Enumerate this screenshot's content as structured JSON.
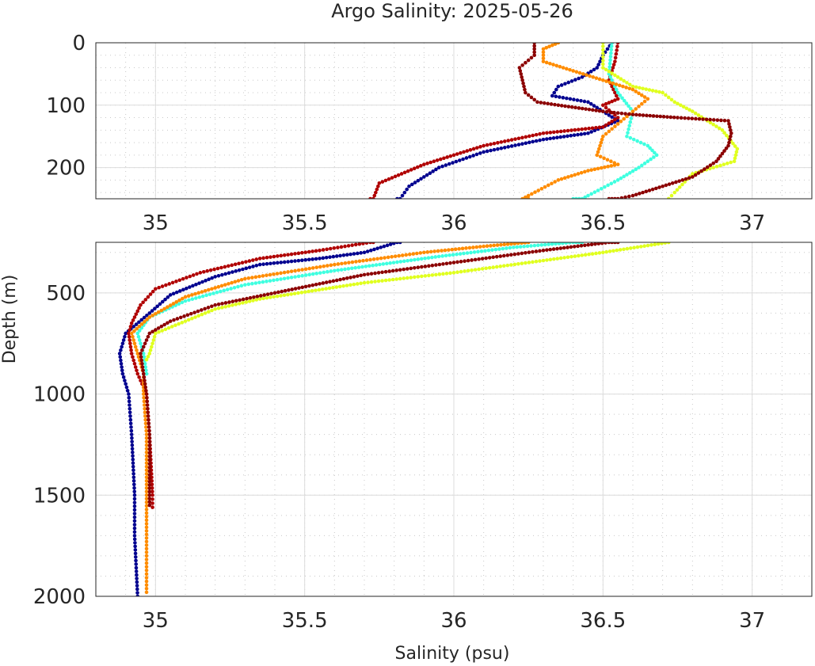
{
  "chart_data": {
    "type": "scatter",
    "title": "Argo Salinity: 2025-05-26",
    "xlabel": "Salinity (psu)",
    "ylabel": "Depth (m)",
    "xlim": [
      34.8,
      37.2
    ],
    "xticks": [
      "35",
      "35.5",
      "36",
      "36.5",
      "37"
    ],
    "grid": true,
    "minor_grid": true,
    "y_reversed": true,
    "panels": [
      {
        "name": "upper",
        "ylim": [
          0,
          250
        ],
        "yticks": [
          "0",
          "100",
          "200"
        ],
        "xlabel": "",
        "ylabel": ""
      },
      {
        "name": "lower",
        "ylim": [
          250,
          2000
        ],
        "yticks": [
          "500",
          "1000",
          "1500",
          "2000"
        ],
        "xlabel": "Salinity (psu)",
        "ylabel": "Depth (m)"
      }
    ],
    "series": [
      {
        "color": "#00008f",
        "points": [
          [
            36.53,
            0
          ],
          [
            36.5,
            20
          ],
          [
            36.48,
            40
          ],
          [
            36.43,
            55
          ],
          [
            36.35,
            70
          ],
          [
            36.33,
            85
          ],
          [
            36.45,
            95
          ],
          [
            36.5,
            110
          ],
          [
            36.55,
            125
          ],
          [
            36.45,
            145
          ],
          [
            36.3,
            155
          ],
          [
            36.1,
            175
          ],
          [
            35.95,
            200
          ],
          [
            35.85,
            230
          ],
          [
            35.82,
            250
          ],
          [
            35.81,
            250
          ],
          [
            35.7,
            300
          ],
          [
            35.55,
            330
          ],
          [
            35.35,
            360
          ],
          [
            35.2,
            420
          ],
          [
            35.05,
            510
          ],
          [
            34.98,
            600
          ],
          [
            34.9,
            700
          ],
          [
            34.88,
            800
          ],
          [
            34.89,
            900
          ],
          [
            34.91,
            1000
          ],
          [
            34.92,
            1200
          ],
          [
            34.93,
            1500
          ],
          [
            34.93,
            1700
          ],
          [
            34.94,
            2000
          ]
        ]
      },
      {
        "color": "#0f5fff",
        "points": []
      },
      {
        "color": "#b00000",
        "points": [
          [
            36.55,
            0
          ],
          [
            36.54,
            30
          ],
          [
            36.52,
            60
          ],
          [
            36.55,
            90
          ],
          [
            36.5,
            100
          ],
          [
            36.55,
            120
          ],
          [
            36.5,
            135
          ],
          [
            36.3,
            145
          ],
          [
            36.1,
            165
          ],
          [
            35.9,
            195
          ],
          [
            35.75,
            225
          ],
          [
            35.73,
            250
          ],
          [
            35.72,
            250
          ],
          [
            35.55,
            290
          ],
          [
            35.35,
            330
          ],
          [
            35.15,
            400
          ],
          [
            35.0,
            480
          ],
          [
            34.95,
            560
          ],
          [
            34.92,
            650
          ],
          [
            34.91,
            700
          ],
          [
            34.92,
            800
          ],
          [
            34.94,
            900
          ],
          [
            34.97,
            1000
          ],
          [
            34.98,
            1200
          ],
          [
            34.99,
            1500
          ],
          [
            34.99,
            1560
          ]
        ]
      },
      {
        "color": "#3fffe0",
        "points": [
          [
            36.53,
            0
          ],
          [
            36.52,
            50
          ],
          [
            36.55,
            80
          ],
          [
            36.6,
            110
          ],
          [
            36.58,
            150
          ],
          [
            36.65,
            165
          ],
          [
            36.68,
            180
          ],
          [
            36.62,
            200
          ],
          [
            36.55,
            220
          ],
          [
            36.45,
            245
          ],
          [
            36.43,
            250
          ],
          [
            36.4,
            250
          ],
          [
            36.2,
            275
          ],
          [
            35.95,
            320
          ],
          [
            35.6,
            390
          ],
          [
            35.3,
            460
          ],
          [
            35.1,
            540
          ],
          [
            34.98,
            620
          ],
          [
            34.94,
            700
          ],
          [
            34.96,
            800
          ],
          [
            34.97,
            900
          ]
        ]
      },
      {
        "color": "#e0ff1f",
        "points": [
          [
            36.5,
            0
          ],
          [
            36.5,
            40
          ],
          [
            36.6,
            70
          ],
          [
            36.7,
            80
          ],
          [
            36.74,
            95
          ],
          [
            36.8,
            110
          ],
          [
            36.9,
            140
          ],
          [
            36.95,
            170
          ],
          [
            36.94,
            190
          ],
          [
            36.8,
            210
          ],
          [
            36.74,
            240
          ],
          [
            36.72,
            250
          ],
          [
            36.72,
            250
          ],
          [
            36.5,
            300
          ],
          [
            36.3,
            340
          ],
          [
            36.0,
            400
          ],
          [
            35.7,
            450
          ],
          [
            35.35,
            530
          ],
          [
            35.2,
            580
          ],
          [
            35.1,
            640
          ],
          [
            35.0,
            700
          ],
          [
            34.98,
            800
          ],
          [
            34.97,
            830
          ]
        ]
      },
      {
        "color": "#ff8c00",
        "points": [
          [
            36.35,
            0
          ],
          [
            36.3,
            10
          ],
          [
            36.3,
            30
          ],
          [
            36.4,
            45
          ],
          [
            36.5,
            60
          ],
          [
            36.6,
            75
          ],
          [
            36.65,
            90
          ],
          [
            36.6,
            110
          ],
          [
            36.55,
            130
          ],
          [
            36.5,
            150
          ],
          [
            36.48,
            180
          ],
          [
            36.55,
            195
          ],
          [
            36.45,
            205
          ],
          [
            36.35,
            220
          ],
          [
            36.25,
            245
          ],
          [
            36.23,
            250
          ],
          [
            36.25,
            250
          ],
          [
            36.1,
            270
          ],
          [
            35.9,
            300
          ],
          [
            35.6,
            360
          ],
          [
            35.3,
            430
          ],
          [
            35.1,
            520
          ],
          [
            34.98,
            620
          ],
          [
            34.92,
            700
          ],
          [
            34.94,
            800
          ],
          [
            34.96,
            900
          ],
          [
            34.96,
            1000
          ],
          [
            34.97,
            1200
          ],
          [
            34.97,
            1500
          ],
          [
            34.97,
            1800
          ],
          [
            34.97,
            1980
          ]
        ]
      },
      {
        "color": "#8b0000",
        "points": [
          [
            36.27,
            0
          ],
          [
            36.27,
            20
          ],
          [
            36.22,
            40
          ],
          [
            36.23,
            60
          ],
          [
            36.24,
            80
          ],
          [
            36.28,
            95
          ],
          [
            36.35,
            100
          ],
          [
            36.5,
            110
          ],
          [
            36.6,
            115
          ],
          [
            36.75,
            120
          ],
          [
            36.92,
            125
          ],
          [
            36.93,
            145
          ],
          [
            36.92,
            165
          ],
          [
            36.88,
            190
          ],
          [
            36.8,
            215
          ],
          [
            36.7,
            230
          ],
          [
            36.6,
            245
          ],
          [
            36.55,
            250
          ],
          [
            36.52,
            250
          ],
          [
            36.3,
            290
          ],
          [
            36.0,
            350
          ],
          [
            35.7,
            410
          ],
          [
            35.4,
            500
          ],
          [
            35.2,
            560
          ],
          [
            35.05,
            640
          ],
          [
            34.98,
            700
          ],
          [
            34.95,
            800
          ],
          [
            34.96,
            900
          ],
          [
            34.97,
            1000
          ],
          [
            34.98,
            1200
          ],
          [
            34.98,
            1400
          ],
          [
            34.98,
            1550
          ]
        ]
      }
    ]
  }
}
